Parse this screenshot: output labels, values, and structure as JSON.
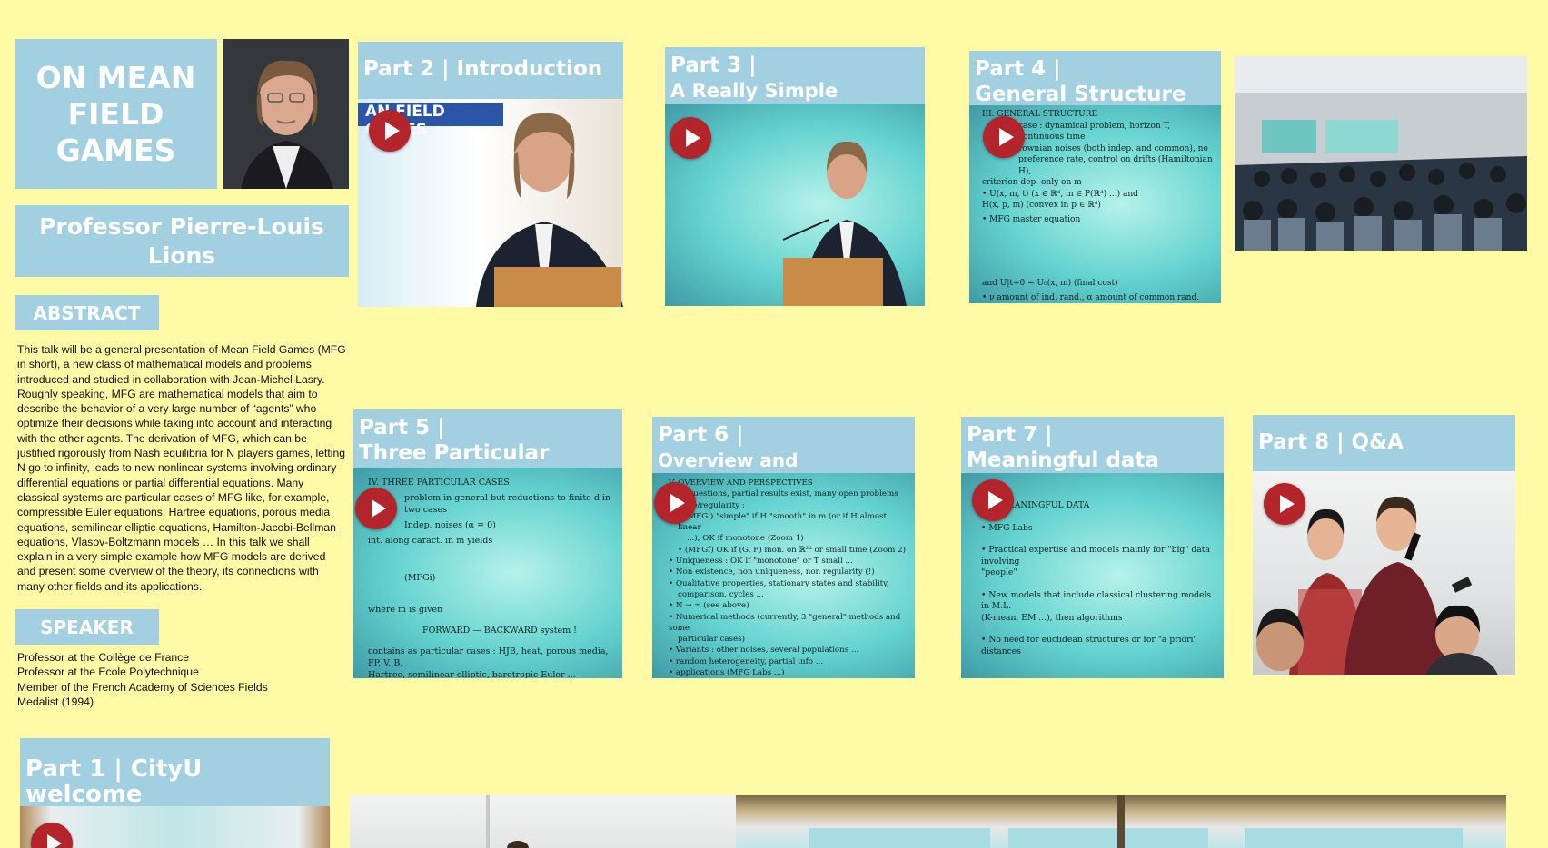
{
  "poster": {
    "title": "ON MEAN FIELD GAMES",
    "speaker_name": "Professor Pierre-Louis Lions",
    "abstract_label": "ABSTRACT",
    "abstract_text": "This talk will be a general presentation of Mean Field Games (MFG in short), a new class of mathematical models and problems introduced and studied in collaboration with Jean-Michel Lasry. Roughly speaking, MFG are mathematical models that aim to describe the behavior of a very large number of “agents” who optimize their decisions while taking into account and interacting with the other agents. The derivation of MFG, which can be justified rigorously from Nash equilibria for N players games, letting N go to infinity, leads to new nonlinear systems involving ordinary differential equations or partial differential equations. Many classical systems are particular cases of MFG like, for example, compressible Euler equations, Hartree equations, porous media equations, semilinear elliptic equations, Hamilton-Jacobi-Bellman equations, Vlasov-Boltzmann models … In this talk we shall explain in a very simple example how MFG models are derived and present some overview of the theory, its connections with many other fields and its applications.",
    "speaker_label": "SPEAKER",
    "speaker_lines": [
      "Professor at the Collège de France",
      "Professor at the Ecole Polytechnique",
      "Member of the French Academy of Sciences Fields",
      "Medalist (1994)"
    ]
  },
  "videos": {
    "part1": {
      "title": "Part 1 | CityU welcome"
    },
    "part2": {
      "title": "Part 2 | Introduction",
      "slide_text": "AN FIELD GAMES"
    },
    "part3": {
      "title_line1": "Part 3 |",
      "title_line2": "A Really Simple Example"
    },
    "part4": {
      "title_line1": "Part 4 |",
      "title_line2": "General Structure",
      "slide_heading": "III. GENERAL STRUCTURE",
      "slide_lines": [
        "case : dynamical problem, horizon T, continuous time",
        "rownian noises (both indep. and common), no",
        "preference rate, control on drifts (Hamiltonian H),",
        "criterion dep. only on m",
        "• U(x, m, t) (x ∈ ℝᵈ, m ∈ P(ℝᵈ) ...) and",
        "H(x, p, m) (convex in p ∈ ℝᵈ)",
        "• MFG master equation",
        "and U|t=0 = U₀(x, m) (final cost)",
        "• ν amount of ind. rand., α amount of common rand."
      ]
    },
    "part5": {
      "title_line1": "Part 5 |",
      "title_line2": "Three Particular Cases",
      "slide_heading": "IV. THREE PARTICULAR CASES",
      "slide_lines": [
        "problem in general but reductions to finite d in two cases",
        "Indep. noises (α = 0)",
        "int. along caract. in m yields",
        "(MFGi)",
        "where m̄ is given",
        "FORWARD — BACKWARD system !",
        "contains as particular cases : HJB, heat, porous media, FP, V, B,",
        "Hartree, semilinear elliptic, barotropic Euler ..."
      ]
    },
    "part6": {
      "title_line1": "Part 6 |",
      "title_line2": "Overview and Perspectives",
      "slide_heading": "V. OVERVIEW AND PERSPECTIVES",
      "slide_lines": [
        "Lots questions, partial results exist, many open problems",
        "istence/regularity :",
        "• (MFGi) \"simple\" if H \"smooth\" in m (or if H almost linear",
        "...), OK if monotone (Zoom 1)",
        "• (MFGf) OK if (G, F) mon. on ℝ²ᵈ or small time (Zoom 2)",
        "• Uniqueness : OK if \"monotone\" or T small ...",
        "• Non existence, non uniqueness, non regularity (!)",
        "• Qualitative properties, stationary states and stability,",
        "comparison, cycles ...",
        "• N → ∞ (see above)",
        "• Numerical methods (currently, 3 \"general\" methods and some",
        "particular cases)",
        "• Variants : other noises, several populations ...",
        "• random heterogeneity, partial info ...",
        "• applications (MFG Labs ...)"
      ]
    },
    "part7": {
      "title_line1": "Part 7 |",
      "title_line2": "Meaningful data",
      "slide_heading": "EANINGFUL DATA",
      "slide_lines": [
        "• MFG Labs",
        "• Practical expertise and models mainly for \"big\" data involving",
        "\"people\"",
        "• New models that include classical clustering models in M.L.",
        "(K-mean, EM ...), then algorithms",
        "• No need for euclidean structures or for \"a priori\" distances"
      ]
    },
    "part8": {
      "title": "Part 8 | Q&A"
    }
  },
  "colors": {
    "background": "#fefaa6",
    "panel_blue": "#a3d0e0",
    "play_red": "#b3242b"
  },
  "icons": {
    "play": "play-icon"
  }
}
